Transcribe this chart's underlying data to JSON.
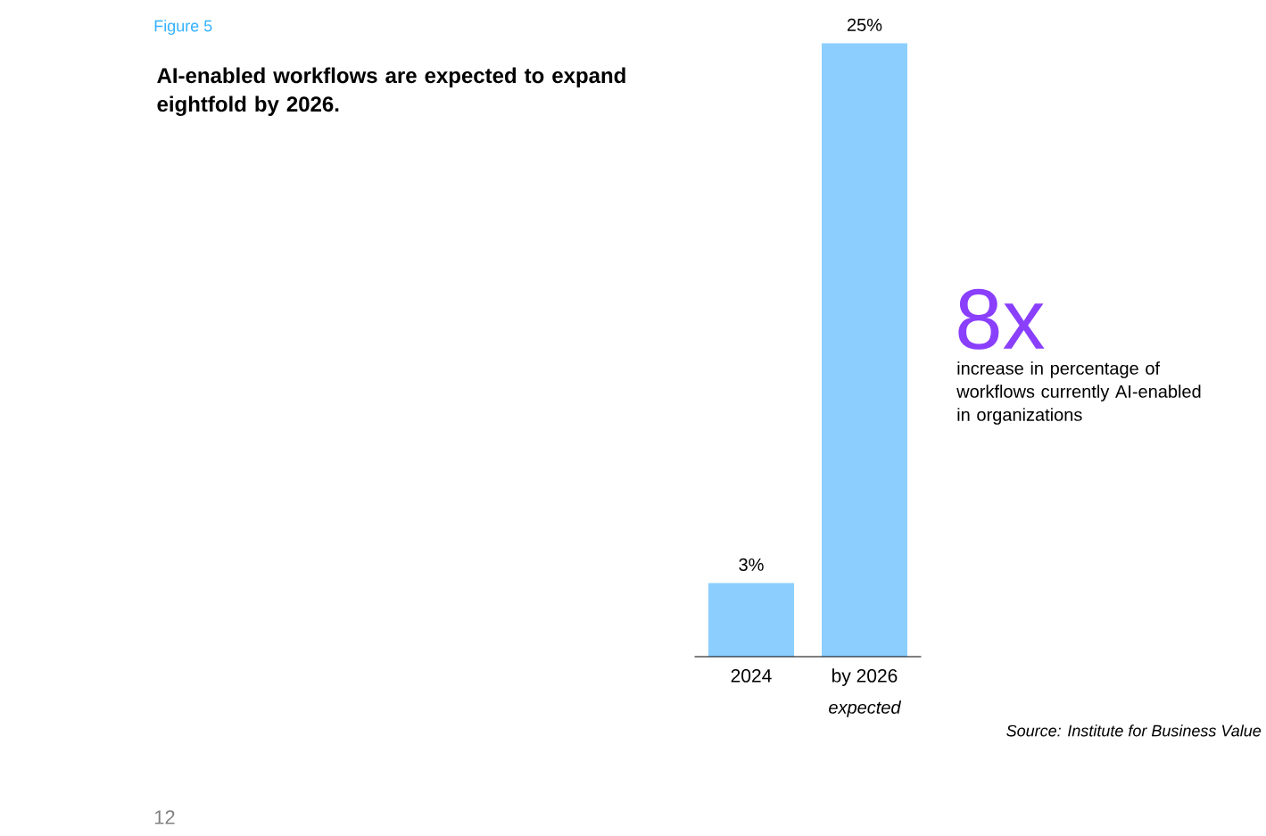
{
  "chart_data": {
    "type": "bar",
    "title": "AI-enabled workflows are expected to expand eightfold by 2026.",
    "categories": [
      "2024",
      "by 2026"
    ],
    "values": [
      3,
      25
    ],
    "value_labels": [
      "3%",
      "25%"
    ],
    "color": "#8ccfff",
    "annotations": [
      "Figure 5",
      "8x",
      "increase in percentage of workflows currently AI-enabled in organizations",
      "expected",
      "Source: Institute for Business Value",
      "12"
    ]
  }
}
